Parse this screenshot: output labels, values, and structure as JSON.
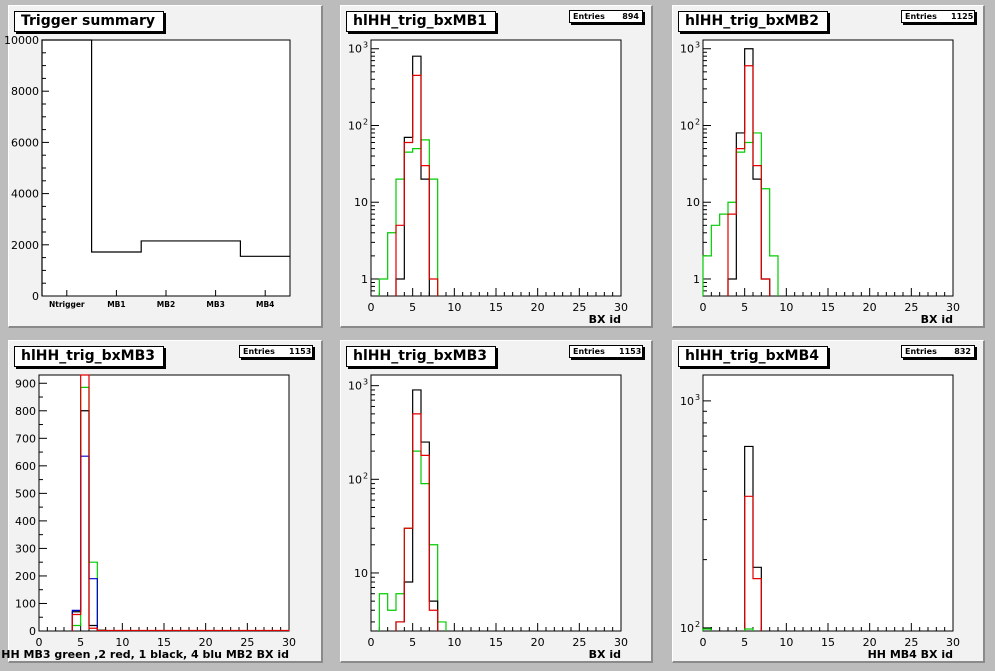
{
  "pads": [
    {
      "title": "Trigger summary",
      "stats": null
    },
    {
      "title": "hlHH_trig_bxMB1",
      "stats": {
        "label": "Entries",
        "value": "894"
      }
    },
    {
      "title": "hlHH_trig_bxMB2",
      "stats": {
        "label": "Entries",
        "value": "1125"
      }
    },
    {
      "title": "hlHH_trig_bxMB3",
      "stats": {
        "label": "Entries",
        "value": "1153"
      }
    },
    {
      "title": "hlHH_trig_bxMB3",
      "stats": {
        "label": "Entries",
        "value": "1153"
      }
    },
    {
      "title": "hlHH_trig_bxMB4",
      "stats": {
        "label": "Entries",
        "value": "832"
      }
    }
  ],
  "colors": {
    "black": "#000000",
    "red": "#e00000",
    "green": "#00cc00",
    "blue": "#0000cc"
  },
  "chart_data": [
    {
      "type": "bar",
      "title": "Trigger summary",
      "ylim": [
        0,
        10000
      ],
      "xlabel": "",
      "ylabel": "",
      "categories": [
        "Ntrigger",
        "MB1",
        "MB2",
        "MB3",
        "MB4"
      ],
      "yticks": [
        0,
        2000,
        4000,
        6000,
        8000,
        10000
      ],
      "series": [
        {
          "color": "black",
          "values": [
            10000,
            1720,
            2150,
            2150,
            1550
          ]
        }
      ]
    },
    {
      "type": "line",
      "title": "hlHH_trig_bxMB1",
      "log": true,
      "xlim": [
        0,
        30
      ],
      "ylim": [
        0.6,
        1300
      ],
      "xlabel": "BX id",
      "xticks": [
        0,
        5,
        10,
        15,
        20,
        25,
        30
      ],
      "yticks": [
        {
          "v": 1,
          "l": "1"
        },
        {
          "v": 10,
          "l": "10"
        },
        {
          "v": 100,
          "l": "10",
          "sup": "2"
        },
        {
          "v": 1000,
          "l": "10",
          "sup": "3"
        }
      ],
      "series": [
        {
          "color": "green",
          "bins": [
            [
              1,
              1
            ],
            [
              2,
              4
            ],
            [
              3,
              20
            ],
            [
              4,
              45
            ],
            [
              5,
              50
            ],
            [
              6,
              65
            ],
            [
              7,
              20
            ]
          ]
        },
        {
          "color": "black",
          "bins": [
            [
              3,
              1
            ],
            [
              4,
              70
            ],
            [
              5,
              800
            ],
            [
              6,
              20
            ]
          ]
        },
        {
          "color": "red",
          "bins": [
            [
              3,
              5
            ],
            [
              4,
              60
            ],
            [
              5,
              450
            ],
            [
              6,
              30
            ],
            [
              7,
              1
            ]
          ]
        }
      ]
    },
    {
      "type": "line",
      "title": "hlHH_trig_bxMB2",
      "log": true,
      "xlim": [
        0,
        30
      ],
      "ylim": [
        0.6,
        1300
      ],
      "xlabel": "BX id",
      "xticks": [
        0,
        5,
        10,
        15,
        20,
        25,
        30
      ],
      "yticks": [
        {
          "v": 1,
          "l": "1"
        },
        {
          "v": 10,
          "l": "10"
        },
        {
          "v": 100,
          "l": "10",
          "sup": "2"
        },
        {
          "v": 1000,
          "l": "10",
          "sup": "3"
        }
      ],
      "series": [
        {
          "color": "green",
          "bins": [
            [
              0,
              2
            ],
            [
              1,
              5
            ],
            [
              2,
              7
            ],
            [
              3,
              10
            ],
            [
              4,
              45
            ],
            [
              5,
              60
            ],
            [
              6,
              80
            ],
            [
              7,
              15
            ],
            [
              8,
              2
            ]
          ]
        },
        {
          "color": "black",
          "bins": [
            [
              3,
              1
            ],
            [
              4,
              80
            ],
            [
              5,
              1000
            ],
            [
              6,
              20
            ],
            [
              7,
              1
            ]
          ]
        },
        {
          "color": "red",
          "bins": [
            [
              3,
              7
            ],
            [
              4,
              50
            ],
            [
              5,
              600
            ],
            [
              6,
              30
            ],
            [
              7,
              1
            ]
          ]
        }
      ]
    },
    {
      "type": "line",
      "title": "hlHH_trig_bxMB3",
      "log": false,
      "xlim": [
        0,
        30
      ],
      "ylim": [
        0,
        930
      ],
      "xlabel": "HH  MB3 green ,2 red, 1 black, 4 blu    MB2 BX id",
      "xticks": [
        0,
        5,
        10,
        15,
        20,
        25,
        30
      ],
      "yticks": [
        {
          "v": 0,
          "l": "0"
        },
        {
          "v": 100,
          "l": "100"
        },
        {
          "v": 200,
          "l": "200"
        },
        {
          "v": 300,
          "l": "300"
        },
        {
          "v": 400,
          "l": "400"
        },
        {
          "v": 500,
          "l": "500"
        },
        {
          "v": 600,
          "l": "600"
        },
        {
          "v": 700,
          "l": "700"
        },
        {
          "v": 800,
          "l": "800"
        },
        {
          "v": 900,
          "l": "900"
        }
      ],
      "series": [
        {
          "color": "green",
          "bins": [
            [
              4,
              20
            ],
            [
              5,
              885
            ],
            [
              6,
              250
            ],
            [
              7,
              3
            ]
          ]
        },
        {
          "color": "black",
          "bins": [
            [
              4,
              70
            ],
            [
              5,
              800
            ],
            [
              6,
              20
            ],
            [
              7,
              3
            ]
          ]
        },
        {
          "color": "blue",
          "bins": [
            [
              4,
              75
            ],
            [
              5,
              635
            ],
            [
              6,
              190
            ]
          ]
        },
        {
          "color": "red",
          "bins": [
            [
              4,
              60
            ],
            [
              5,
              950
            ],
            [
              6,
              10
            ],
            [
              7,
              2
            ],
            [
              8,
              2
            ],
            [
              9,
              2
            ],
            [
              10,
              2
            ],
            [
              11,
              2
            ],
            [
              12,
              2
            ],
            [
              13,
              2
            ],
            [
              14,
              2
            ],
            [
              15,
              2
            ],
            [
              16,
              2
            ],
            [
              17,
              2
            ],
            [
              18,
              2
            ],
            [
              19,
              2
            ],
            [
              20,
              2
            ],
            [
              21,
              2
            ],
            [
              22,
              2
            ],
            [
              23,
              2
            ],
            [
              24,
              2
            ],
            [
              25,
              2
            ],
            [
              26,
              2
            ],
            [
              27,
              2
            ],
            [
              28,
              2
            ],
            [
              29,
              2
            ]
          ]
        }
      ]
    },
    {
      "type": "line",
      "title": "hlHH_trig_bxMB3",
      "log": true,
      "xlim": [
        0,
        30
      ],
      "ylim": [
        2.4,
        1300
      ],
      "xlabel": "BX id",
      "xticks": [
        0,
        5,
        10,
        15,
        20,
        25,
        30
      ],
      "yticks": [
        {
          "v": 10,
          "l": "10"
        },
        {
          "v": 100,
          "l": "10",
          "sup": "2"
        },
        {
          "v": 1000,
          "l": "10",
          "sup": "3"
        }
      ],
      "series": [
        {
          "color": "green",
          "bins": [
            [
              1,
              6
            ],
            [
              2,
              4
            ],
            [
              3,
              6
            ],
            [
              4,
              30
            ],
            [
              5,
              200
            ],
            [
              6,
              90
            ],
            [
              7,
              20
            ],
            [
              8,
              3
            ]
          ]
        },
        {
          "color": "black",
          "bins": [
            [
              3,
              3
            ],
            [
              4,
              8
            ],
            [
              5,
              900
            ],
            [
              6,
              250
            ],
            [
              7,
              5
            ]
          ]
        },
        {
          "color": "red",
          "bins": [
            [
              3,
              3
            ],
            [
              4,
              30
            ],
            [
              5,
              500
            ],
            [
              6,
              180
            ],
            [
              7,
              4
            ]
          ]
        }
      ]
    },
    {
      "type": "line",
      "title": "hlHH_trig_bxMB4",
      "log": true,
      "xlim": [
        0,
        30
      ],
      "ylim": [
        97,
        1300
      ],
      "xlabel": "HH MB4 BX id",
      "xticks": [
        0,
        5,
        10,
        15,
        20,
        25,
        30
      ],
      "yticks": [
        {
          "v": 100,
          "l": "10",
          "sup": "2"
        },
        {
          "v": 1000,
          "l": "10",
          "sup": "3"
        }
      ],
      "series": [
        {
          "color": "black",
          "bins": [
            [
              0,
              100
            ],
            [
              5,
              630
            ],
            [
              6,
              185
            ]
          ]
        },
        {
          "color": "red",
          "bins": [
            [
              5,
              380
            ],
            [
              6,
              165
            ]
          ]
        },
        {
          "color": "green",
          "bins": [
            [
              0,
              99
            ],
            [
              5,
              99
            ]
          ]
        }
      ]
    }
  ]
}
